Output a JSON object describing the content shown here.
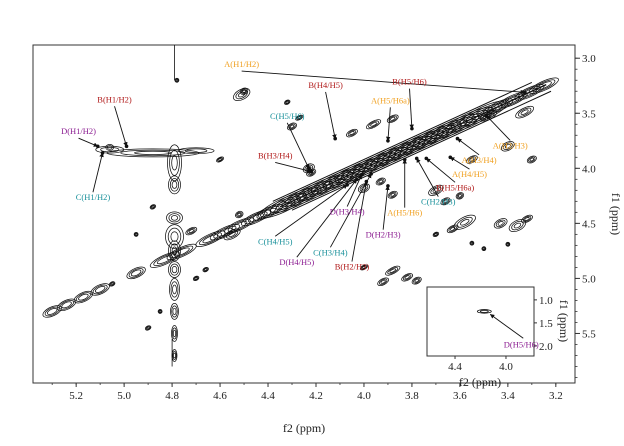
{
  "colors": {
    "A": "#f0a020",
    "B": "#b01818",
    "C": "#18909a",
    "D": "#8a1a90",
    "contour": "#111111"
  },
  "chart_data": {
    "type": "scatter",
    "main": {
      "xlabel": "f2 (ppm)",
      "ylabel": "f1 (ppm)",
      "xlim": [
        5.38,
        3.12
      ],
      "ylim": [
        2.88,
        5.95
      ],
      "x_reversed": true,
      "y_reversed": true,
      "xticks": [
        "5.2",
        "5.0",
        "4.8",
        "4.6",
        "4.4",
        "4.2",
        "4.0",
        "3.8",
        "3.6",
        "3.4",
        "3.2"
      ],
      "yticks": [
        "3.0",
        "3.5",
        "4.0",
        "4.5",
        "5.0",
        "5.5"
      ],
      "peaks": [
        {
          "text": "A(H1/H2)",
          "residue": "A",
          "x": 3.33,
          "y": 3.31,
          "tx": 4.51,
          "ty": 3.08
        },
        {
          "text": "A(H5/H6a)",
          "residue": "A",
          "x": 3.9,
          "y": 3.75,
          "tx": 3.89,
          "ty": 3.41
        },
        {
          "text": "A(H2/H3)",
          "residue": "A",
          "x": 3.49,
          "y": 3.52,
          "tx": 3.39,
          "ty": 3.82
        },
        {
          "text": "A(H3/H4)",
          "residue": "A",
          "x": 3.61,
          "y": 3.73,
          "tx": 3.52,
          "ty": 3.95
        },
        {
          "text": "A(H4/H5)",
          "residue": "A",
          "x": 3.64,
          "y": 3.9,
          "tx": 3.56,
          "ty": 4.08
        },
        {
          "text": "A(H5/H6)",
          "residue": "A",
          "x": 3.83,
          "y": 3.92,
          "tx": 3.83,
          "ty": 4.43
        },
        {
          "text": "B(H1/H2)",
          "residue": "B",
          "x": 4.99,
          "y": 3.8,
          "tx": 5.04,
          "ty": 3.4
        },
        {
          "text": "B(H4/H5)",
          "residue": "B",
          "x": 4.12,
          "y": 3.73,
          "tx": 4.16,
          "ty": 3.27
        },
        {
          "text": "B(H5/H6)",
          "residue": "B",
          "x": 3.8,
          "y": 3.64,
          "tx": 3.81,
          "ty": 3.24
        },
        {
          "text": "B(H3/H4)",
          "residue": "B",
          "x": 4.22,
          "y": 4.03,
          "tx": 4.37,
          "ty": 3.91
        },
        {
          "text": "B(H5/H6a)",
          "residue": "B",
          "x": 3.74,
          "y": 3.91,
          "tx": 3.62,
          "ty": 4.2
        },
        {
          "text": "B(H2/H3)",
          "residue": "B",
          "x": 3.99,
          "y": 4.12,
          "tx": 4.05,
          "ty": 4.92
        },
        {
          "text": "C(H5/H6)",
          "residue": "C",
          "x": 4.23,
          "y": 4.0,
          "tx": 4.32,
          "ty": 3.55
        },
        {
          "text": "C(H1/H2)",
          "residue": "C",
          "x": 5.09,
          "y": 3.86,
          "tx": 5.13,
          "ty": 4.29
        },
        {
          "text": "C(H2/H3)",
          "residue": "C",
          "x": 3.78,
          "y": 3.91,
          "tx": 3.69,
          "ty": 4.33
        },
        {
          "text": "C(H4/H5)",
          "residue": "C",
          "x": 4.07,
          "y": 4.15,
          "tx": 4.37,
          "ty": 4.69
        },
        {
          "text": "C(H3/H4)",
          "residue": "C",
          "x": 3.97,
          "y": 4.05,
          "tx": 4.14,
          "ty": 4.79
        },
        {
          "text": "D(H1/H2)",
          "residue": "D",
          "x": 5.11,
          "y": 3.8,
          "tx": 5.19,
          "ty": 3.69
        },
        {
          "text": "D(H3/H4)",
          "residue": "D",
          "x": 4.01,
          "y": 4.06,
          "tx": 4.07,
          "ty": 4.42
        },
        {
          "text": "D(H2/H3)",
          "residue": "D",
          "x": 3.9,
          "y": 4.16,
          "tx": 3.92,
          "ty": 4.63
        },
        {
          "text": "D(H4/H5)",
          "residue": "D",
          "x": 4.03,
          "y": 4.1,
          "tx": 4.28,
          "ty": 4.88
        }
      ]
    },
    "inset": {
      "xlabel": "f2 (ppm)",
      "ylabel": "f1 (ppm)",
      "xlim": [
        4.62,
        3.78
      ],
      "ylim": [
        0.72,
        2.22
      ],
      "x_reversed": true,
      "y_reversed": true,
      "xticks": [
        "4.4",
        "4.0"
      ],
      "yticks": [
        "1.0",
        "1.5",
        "2.0"
      ],
      "peaks": [
        {
          "text": "D(H5/H6)",
          "residue": "D",
          "x": 4.17,
          "y": 1.25,
          "tx": 3.88,
          "ty": 2.03
        }
      ]
    }
  }
}
